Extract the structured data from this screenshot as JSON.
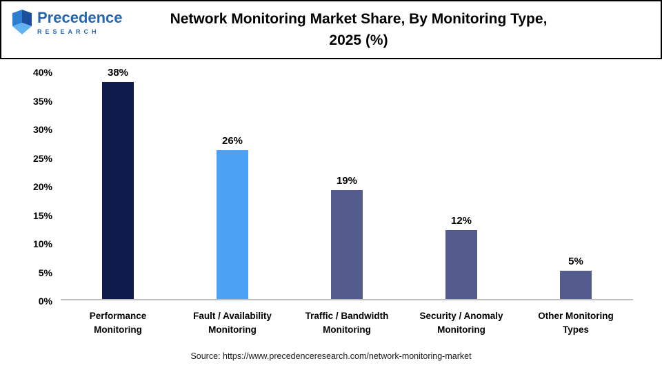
{
  "header": {
    "title": "Network Monitoring Market Share, By Monitoring Type, 2025 (%)",
    "title_lines": [
      "Network Monitoring Market Share, By Monitoring Type,",
      "2025 (%)"
    ],
    "logo": {
      "name": "Precedence",
      "sub": "RESEARCH",
      "brand_color": "#2566b0"
    }
  },
  "chart_data": {
    "type": "bar",
    "title": "Network Monitoring Market Share, By Monitoring Type, 2025 (%)",
    "categories": [
      "Performance Monitoring",
      "Fault / Availability Monitoring",
      "Traffic / Bandwidth Monitoring",
      "Security / Anomaly Monitoring",
      "Other Monitoring Types"
    ],
    "category_lines": [
      [
        "Performance",
        "Monitoring"
      ],
      [
        "Fault / Availability",
        "Monitoring"
      ],
      [
        "Traffic / Bandwidth",
        "Monitoring"
      ],
      [
        "Security / Anomaly",
        "Monitoring"
      ],
      [
        "Other Monitoring",
        "Types"
      ]
    ],
    "values": [
      38,
      26,
      19,
      12,
      5
    ],
    "value_labels": [
      "38%",
      "26%",
      "19%",
      "12%",
      "5%"
    ],
    "bar_colors": [
      "#101b4d",
      "#4da1f4",
      "#545c8e",
      "#545c8e",
      "#545c8e"
    ],
    "xlabel": "",
    "ylabel": "",
    "ylim": [
      0,
      40
    ],
    "yticks": [
      0,
      5,
      10,
      15,
      20,
      25,
      30,
      35,
      40
    ],
    "ytick_labels": [
      "0%",
      "5%",
      "10%",
      "15%",
      "20%",
      "25%",
      "30%",
      "35%",
      "40%"
    ],
    "grid": false,
    "legend": false
  },
  "footer": {
    "source": "Source: https://www.precedenceresearch.com/network-monitoring-market"
  }
}
